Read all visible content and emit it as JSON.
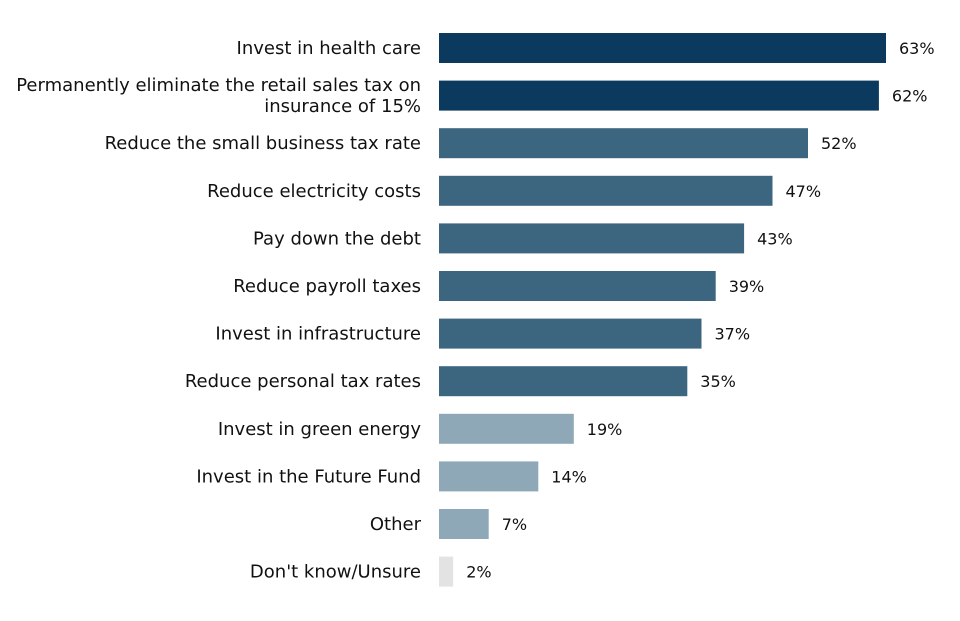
{
  "chart_data": {
    "type": "bar",
    "orientation": "horizontal",
    "categories": [
      [
        "Invest in health care"
      ],
      [
        "Permanently eliminate the retail sales tax on",
        "insurance of 15%"
      ],
      [
        "Reduce the small business tax rate"
      ],
      [
        "Reduce electricity costs"
      ],
      [
        "Pay down the debt"
      ],
      [
        "Reduce payroll taxes"
      ],
      [
        "Invest in infrastructure"
      ],
      [
        "Reduce personal tax rates"
      ],
      [
        "Invest in green energy"
      ],
      [
        "Invest in the Future Fund"
      ],
      [
        "Other"
      ],
      [
        "Don't know/Unsure"
      ]
    ],
    "values": [
      63,
      62,
      52,
      47,
      43,
      39,
      37,
      35,
      19,
      14,
      7,
      2
    ],
    "value_labels": [
      "63%",
      "62%",
      "52%",
      "47%",
      "43%",
      "39%",
      "37%",
      "35%",
      "19%",
      "14%",
      "7%",
      "2%"
    ],
    "bar_colors": [
      "#0b3a5e",
      "#0b3a5e",
      "#3c6580",
      "#3c6580",
      "#3c6580",
      "#3c6580",
      "#3c6580",
      "#3c6580",
      "#8fa8b8",
      "#8fa8b8",
      "#8fa8b8",
      "#e3e3e3"
    ],
    "xlim": [
      0,
      63
    ],
    "title": "",
    "xlabel": "",
    "ylabel": "",
    "grid": false,
    "legend": "none"
  }
}
